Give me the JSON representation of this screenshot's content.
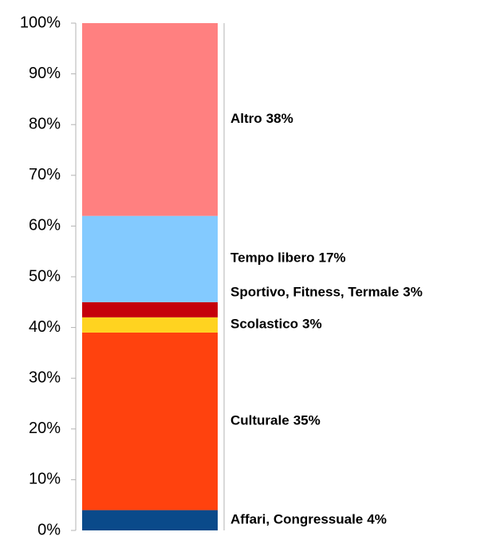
{
  "chart_data": {
    "type": "bar",
    "stacked": true,
    "categories": [
      null
    ],
    "series": [
      {
        "name": "Affari, Congressuale",
        "color": "#0a4a8a",
        "values": [
          4
        ],
        "value_labels": [
          "4%"
        ]
      },
      {
        "name": "Culturale",
        "color": "#ff420e",
        "values": [
          35
        ],
        "value_labels": [
          "35%"
        ]
      },
      {
        "name": "Scolastico",
        "color": "#ffd320",
        "values": [
          3
        ],
        "value_labels": [
          "3%"
        ]
      },
      {
        "name": "Sportivo, Fitness, Termale",
        "color": "#c5000b",
        "values": [
          3
        ],
        "value_labels": [
          "3%"
        ]
      },
      {
        "name": "Tempo libero",
        "color": "#83caff",
        "values": [
          17
        ],
        "value_labels": [
          "17%"
        ]
      },
      {
        "name": "Altro",
        "color": "#ff8080",
        "values": [
          38
        ],
        "value_labels": [
          "38%"
        ]
      }
    ],
    "ylim": [
      0,
      100
    ],
    "yticks": [
      {
        "value": 0,
        "label": "0%"
      },
      {
        "value": 10,
        "label": "10%"
      },
      {
        "value": 20,
        "label": "20%"
      },
      {
        "value": 30,
        "label": "30%"
      },
      {
        "value": 40,
        "label": "40%"
      },
      {
        "value": 50,
        "label": "50%"
      },
      {
        "value": 60,
        "label": "60%"
      },
      {
        "value": 70,
        "label": "70%"
      },
      {
        "value": 80,
        "label": "80%"
      },
      {
        "value": 90,
        "label": "90%"
      },
      {
        "value": 100,
        "label": "100%"
      }
    ],
    "grid": false
  }
}
